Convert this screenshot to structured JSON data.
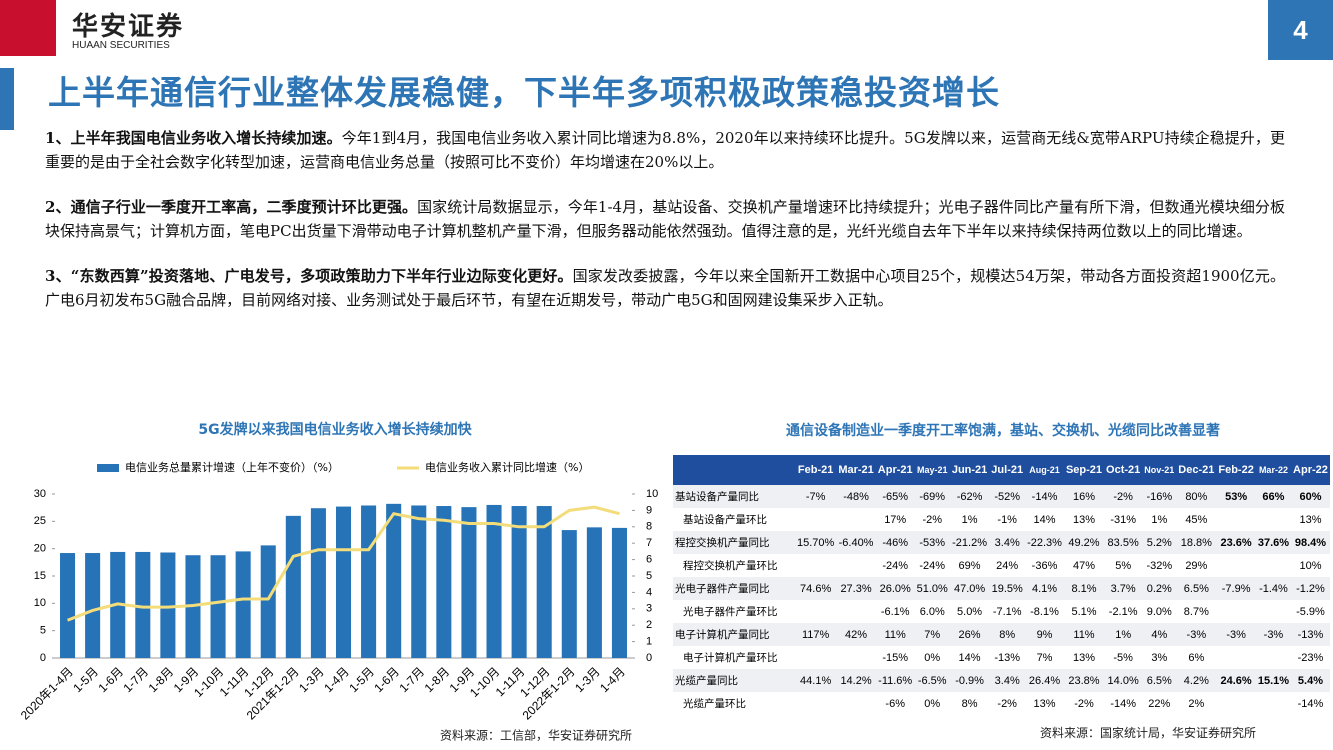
{
  "header": {
    "logo_cn": "华安证券",
    "logo_en": "HUAAN SECURITIES",
    "page_number": "4",
    "title": "上半年通信行业整体发展稳健，下半年多项积极政策稳投资增长"
  },
  "paragraphs": [
    {
      "lead": "1、上半年我国电信业务收入增长持续加速。",
      "body": "今年1到4月，我国电信业务收入累计同比增速为8.8%，2020年以来持续环比提升。5G发牌以来，运营商无线&宽带ARPU持续企稳提升，更重要的是由于全社会数字化转型加速，运营商电信业务总量（按照可比不变价）年均增速在20%以上。"
    },
    {
      "lead": "2、通信子行业一季度开工率高，二季度预计环比更强。",
      "body": "国家统计局数据显示，今年1-4月，基站设备、交换机产量增速环比持续提升；光电子器件同比产量有所下滑，但数通光模块细分板块保持高景气；计算机方面，笔电PC出货量下滑带动电子计算机整机产量下滑，但服务器动能依然强劲。值得注意的是，光纤光缆自去年下半年以来持续保持两位数以上的同比增速。"
    },
    {
      "lead": "3、“东数西算”投资落地、广电发号，多项政策助力下半年行业边际变化更好。",
      "body": "国家发改委披露，今年以来全国新开工数据中心项目25个，规模达54万架，带动各方面投资超1900亿元。广电6月初发布5G融合品牌，目前网络对接、业务测试处于最后环节，有望在近期发号，带动广电5G和固网建设集采步入正轨。"
    }
  ],
  "chart_data": {
    "type": "bar-line",
    "title": "5G发牌以来我国电信业务收入增长持续加快",
    "source": "资料来源：工信部，华安证券研究所",
    "categories": [
      "2020年1-4月",
      "1-5月",
      "1-6月",
      "1-7月",
      "1-8月",
      "1-9月",
      "1-10月",
      "1-11月",
      "1-12月",
      "2021年1-2月",
      "1-3月",
      "1-4月",
      "1-5月",
      "1-6月",
      "1-7月",
      "1-8月",
      "1-9月",
      "1-10月",
      "1-11月",
      "1-12月",
      "2022年1-2月",
      "1-3月",
      "1-4月"
    ],
    "series": [
      {
        "name": "电信业务总量累计增速（上年不变价）（%）",
        "type": "bar",
        "color": "#2673b8",
        "values": [
          19.2,
          19.2,
          19.4,
          19.4,
          19.3,
          18.8,
          18.8,
          19.5,
          20.6,
          26.0,
          27.4,
          27.7,
          27.9,
          28.2,
          27.9,
          27.8,
          27.6,
          28.0,
          27.8,
          27.8,
          23.4,
          23.9,
          23.8
        ]
      },
      {
        "name": "电信业务收入累计同比增速（%）",
        "type": "line",
        "axis": "y2",
        "color": "#f3dc7a",
        "values": [
          2.3,
          2.9,
          3.3,
          3.1,
          3.1,
          3.2,
          3.4,
          3.6,
          3.6,
          6.2,
          6.6,
          6.6,
          6.6,
          8.8,
          8.5,
          8.4,
          8.2,
          8.2,
          8.0,
          8.0,
          9.0,
          9.2,
          8.8
        ]
      }
    ],
    "ylim": [
      0,
      30
    ],
    "yticks": [
      0,
      5,
      10,
      15,
      20,
      25,
      30
    ],
    "y2lim": [
      0,
      10
    ],
    "y2ticks": [
      0,
      1,
      2,
      3,
      4,
      5,
      6,
      7,
      8,
      9,
      10
    ]
  },
  "table": {
    "title": "通信设备制造业一季度开工率饱满，基站、交换机、光缆同比改善显著",
    "source": "资料来源：国家统计局，华安证券研究所",
    "columns": [
      "Feb-21",
      "Mar-21",
      "Apr-21",
      "May-21",
      "Jun-21",
      "Jul-21",
      "Aug-21",
      "Sep-21",
      "Oct-21",
      "Nov-21",
      "Dec-21",
      "Feb-22",
      "Mar-22",
      "Apr-22"
    ],
    "rows": [
      {
        "label": "基站设备产量同比",
        "cells": [
          "-7%",
          "-48%",
          "-65%",
          "-69%",
          "-62%",
          "-52%",
          "-14%",
          "16%",
          "-2%",
          "-16%",
          "80%",
          "53%",
          "66%",
          "60%"
        ]
      },
      {
        "label": "基站设备产量环比",
        "cells": [
          null,
          null,
          "17%",
          "-2%",
          "1%",
          "-1%",
          "14%",
          "13%",
          "-31%",
          "1%",
          "45%",
          null,
          null,
          "13%"
        ]
      },
      {
        "label": "程控交换机产量同比",
        "cells": [
          "15.70%",
          "-6.40%",
          "-46%",
          "-53%",
          "-21.2%",
          "3.4%",
          "-22.3%",
          "49.2%",
          "83.5%",
          "5.2%",
          "18.8%",
          "23.6%",
          "37.6%",
          "98.4%"
        ]
      },
      {
        "label": "程控交换机产量环比",
        "cells": [
          null,
          null,
          "-24%",
          "-24%",
          "69%",
          "24%",
          "-36%",
          "47%",
          "5%",
          "-32%",
          "29%",
          null,
          null,
          "10%"
        ]
      },
      {
        "label": "光电子器件产量同比",
        "cells": [
          "74.6%",
          "27.3%",
          "26.0%",
          "51.0%",
          "47.0%",
          "19.5%",
          "4.1%",
          "8.1%",
          "3.7%",
          "0.2%",
          "6.5%",
          "-7.9%",
          "-1.4%",
          "-1.2%"
        ]
      },
      {
        "label": "光电子器件产量环比",
        "cells": [
          null,
          null,
          "-6.1%",
          "6.0%",
          "5.0%",
          "-7.1%",
          "-8.1%",
          "5.1%",
          "-2.1%",
          "9.0%",
          "8.7%",
          null,
          null,
          "-5.9%"
        ]
      },
      {
        "label": "电子计算机产量同比",
        "cells": [
          "117%",
          "42%",
          "11%",
          "7%",
          "26%",
          "8%",
          "9%",
          "11%",
          "1%",
          "4%",
          "-3%",
          "-3%",
          "-3%",
          "-13%"
        ]
      },
      {
        "label": "电子计算机产量环比",
        "cells": [
          null,
          null,
          "-15%",
          "0%",
          "14%",
          "-13%",
          "7%",
          "13%",
          "-5%",
          "3%",
          "6%",
          null,
          null,
          "-23%"
        ]
      },
      {
        "label": "光缆产量同比",
        "cells": [
          "44.1%",
          "14.2%",
          "-11.6%",
          "-6.5%",
          "-0.9%",
          "3.4%",
          "26.4%",
          "23.8%",
          "14.0%",
          "6.5%",
          "4.2%",
          "24.6%",
          "15.1%",
          "5.4%"
        ]
      },
      {
        "label": "光缆产量环比",
        "cells": [
          null,
          null,
          "-6%",
          "0%",
          "8%",
          "-2%",
          "13%",
          "-2%",
          "-14%",
          "22%",
          "2%",
          null,
          null,
          "-14%"
        ]
      }
    ]
  }
}
